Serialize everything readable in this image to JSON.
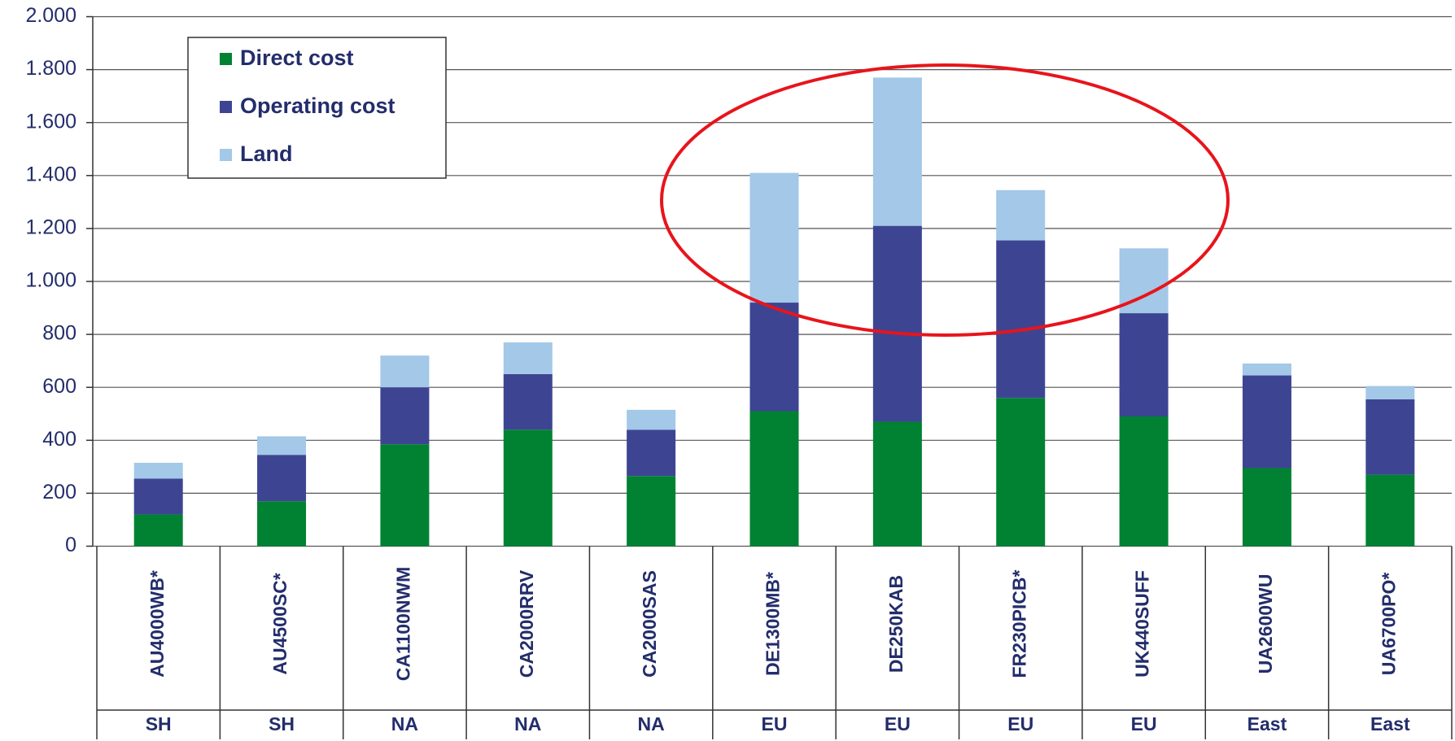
{
  "chart_data": {
    "type": "stacked-bar",
    "categories": [
      "AU4000WB*",
      "AU4500SC*",
      "CA1100NWM",
      "CA2000RRV",
      "CA2000SAS",
      "DE1300MB*",
      "DE250KAB",
      "FR230PICB*",
      "UK440SUFF",
      "UA2600WU",
      "UA6700PO*"
    ],
    "groups": [
      "SH",
      "SH",
      "NA",
      "NA",
      "NA",
      "EU",
      "EU",
      "EU",
      "EU",
      "East",
      "East"
    ],
    "series": [
      {
        "name": "Direct cost",
        "color": "#008232",
        "values": [
          120,
          170,
          385,
          440,
          265,
          510,
          470,
          560,
          490,
          295,
          270
        ]
      },
      {
        "name": "Operating cost",
        "color": "#3d4593",
        "values": [
          135,
          175,
          215,
          210,
          175,
          410,
          740,
          595,
          390,
          350,
          285
        ]
      },
      {
        "name": "Land",
        "color": "#a3c8e8",
        "values": [
          60,
          70,
          120,
          120,
          75,
          490,
          560,
          190,
          245,
          45,
          50
        ]
      }
    ],
    "ylim": [
      0,
      2000
    ],
    "yticks": [
      0,
      200,
      400,
      600,
      800,
      {
        "value": 1000,
        "label": "1.000"
      },
      {
        "value": 1200,
        "label": "1.200"
      },
      {
        "value": 1400,
        "label": "1.400"
      },
      {
        "value": 1600,
        "label": "1.600"
      },
      {
        "value": 1800,
        "label": "1.800"
      },
      {
        "value": 2000,
        "label": "2.000"
      }
    ],
    "grid": true
  }
}
